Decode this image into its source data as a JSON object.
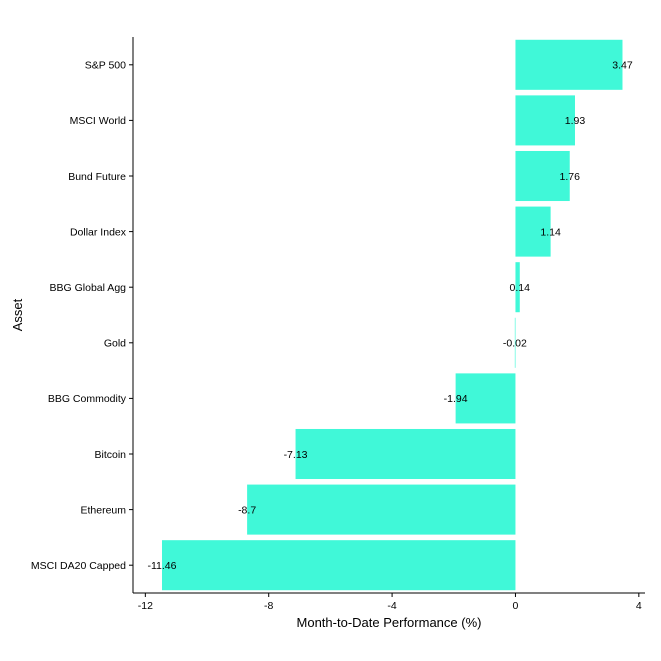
{
  "chart_data": {
    "type": "bar",
    "orientation": "horizontal",
    "title": "",
    "xlabel": "Month-to-Date Performance (%)",
    "ylabel": "Asset",
    "xlim": [
      -12.4,
      4.2
    ],
    "xticks": [
      -12,
      -8,
      -4,
      0,
      4
    ],
    "grid": false,
    "bar_color": "#40f8d8",
    "categories": [
      "S&P 500",
      "MSCI World",
      "Bund Future",
      "Dollar Index",
      "BBG Global Agg",
      "Gold",
      "BBG Commodity",
      "Bitcoin",
      "Ethereum",
      "MSCI DA20 Capped"
    ],
    "values": [
      3.47,
      1.93,
      1.76,
      1.14,
      0.14,
      -0.02,
      -1.94,
      -7.13,
      -8.7,
      -11.46
    ],
    "data_labels": [
      "3.47",
      "1.93",
      "1.76",
      "1.14",
      "0.14",
      "-0.02",
      "-1.94",
      "-7.13",
      "-8.7",
      "-11.46"
    ]
  }
}
